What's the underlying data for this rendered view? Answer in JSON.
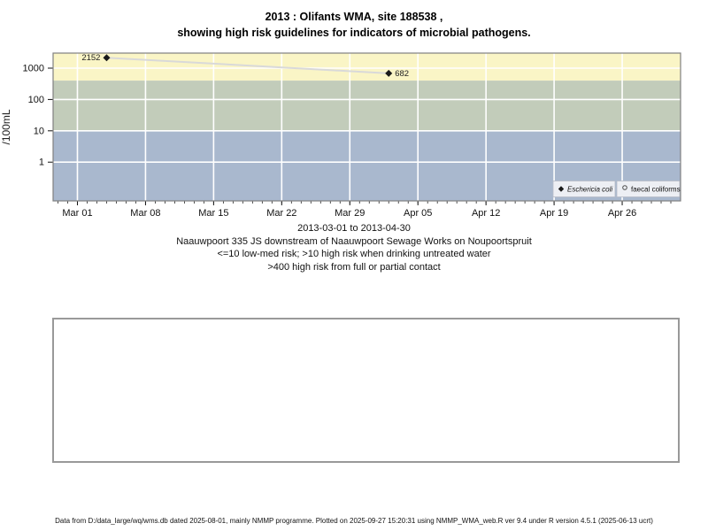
{
  "title": {
    "line1": "2013 : Olifants WMA, site 188538 ,",
    "line2": "showing high risk guidelines for indicators of microbial pathogens."
  },
  "chart_data": {
    "type": "scatter",
    "ylabel": "/100mL",
    "x_axis": {
      "min": "2013-02-26T12:00:00Z",
      "max": "2013-05-02T00:00:00Z",
      "minor_tick_every_days": 1,
      "major_ticks": [
        {
          "date": "2013-03-01",
          "label": "Mar 01"
        },
        {
          "date": "2013-03-08",
          "label": "Mar 08"
        },
        {
          "date": "2013-03-15",
          "label": "Mar 15"
        },
        {
          "date": "2013-03-22",
          "label": "Mar 22"
        },
        {
          "date": "2013-03-29",
          "label": "Mar 29"
        },
        {
          "date": "2013-04-05",
          "label": "Apr 05"
        },
        {
          "date": "2013-04-12",
          "label": "Apr 12"
        },
        {
          "date": "2013-04-19",
          "label": "Apr 19"
        },
        {
          "date": "2013-04-26",
          "label": "Apr 26"
        }
      ]
    },
    "y_axis": {
      "scale": "log10",
      "min": 0.058,
      "max": 3020,
      "ticks": [
        {
          "value": 1000,
          "label": "1000"
        },
        {
          "value": 100,
          "label": "100"
        },
        {
          "value": 10,
          "label": "10"
        },
        {
          "value": 1,
          "label": "1"
        }
      ]
    },
    "bands": [
      {
        "label": "high risk >400 full or partial contact",
        "min": 400,
        "max": null,
        "color": "#faf5c6"
      },
      {
        "label": "high risk 10-400 drinking untreated water",
        "min": 10,
        "max": 400,
        "color": "#c2ccba"
      },
      {
        "label": "low-med risk <=10",
        "min": null,
        "max": 10,
        "color": "#a9b8ce"
      }
    ],
    "gridline_color": "#ffffff",
    "series": [
      {
        "name": "Eschericia coli",
        "marker": "filled-diamond",
        "color": "#1a1a1a",
        "line_color": "#d9d9d9",
        "points": [
          {
            "date": "2013-03-04",
            "value": 2152,
            "label": "2152",
            "label_side": "left"
          },
          {
            "date": "2013-04-02",
            "value": 682,
            "label": "682",
            "label_side": "right"
          }
        ]
      },
      {
        "name": "faecal coliforms",
        "marker": "open-circle",
        "color": "#4d4d4d",
        "points": []
      }
    ],
    "legend": {
      "position": "bottom-right",
      "entries": [
        {
          "marker": "filled-diamond",
          "label": "Eschericia coli",
          "italic": true
        },
        {
          "marker": "open-circle",
          "label": "faecal coliforms",
          "italic": false
        }
      ]
    }
  },
  "caption": {
    "lines": [
      "2013-03-01 to 2013-04-30",
      "Naauwpoort 335 JS downstream of Naauwpoort Sewage Works on Noupoortspruit",
      "<=10 low-med risk; >10 high risk when drinking untreated water",
      ">400 high risk from full or partial contact"
    ]
  },
  "footer": {
    "text": "Data from D:/data_large/wq/wms.db dated 2025-08-01, mainly NMMP programme. Plotted on 2025-09-27 15:20:31 using NMMP_WMA_web.R ver 9.4 under R version 4.5.1 (2025-06-13 ucrt)"
  }
}
